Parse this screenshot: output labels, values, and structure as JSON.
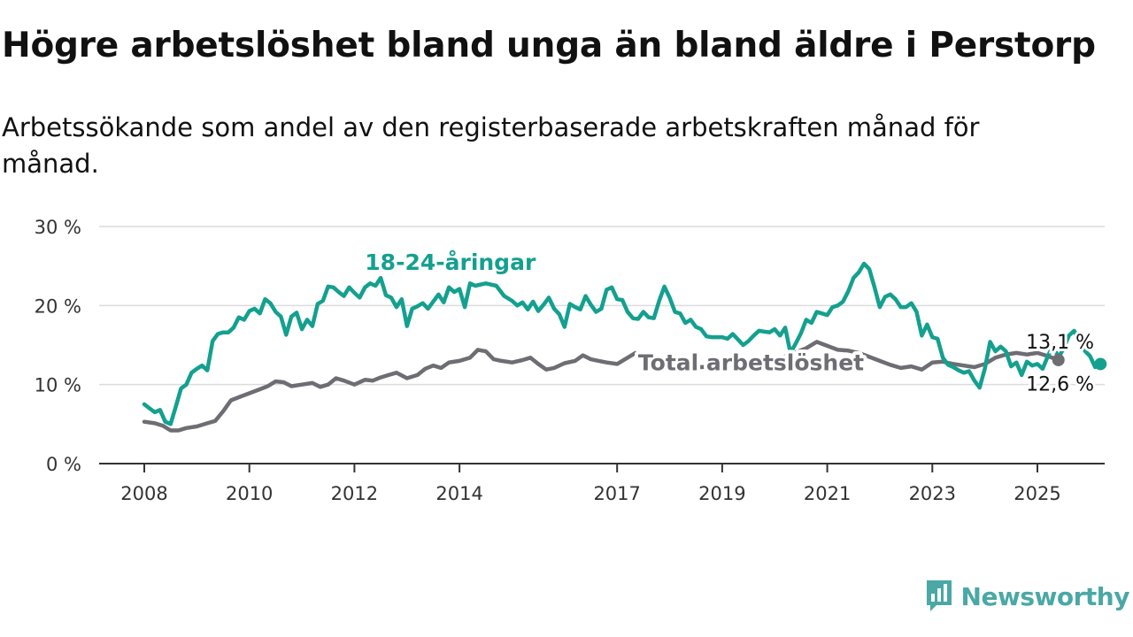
{
  "header": {
    "title": "Högre arbetslöshet bland unga än bland äldre i Perstorp",
    "subtitle": "Arbetssökande som andel av den registerbaserade arbetskraften månad för månad."
  },
  "branding": {
    "logo_text": "Newsworthy",
    "logo_icon": "bar-chart-speech-bubble-icon",
    "color": "#4aa8a6"
  },
  "chart_data": {
    "type": "line",
    "xlim": [
      2008,
      2026.3
    ],
    "ylim": [
      0,
      30
    ],
    "y_ticks": [
      0,
      10,
      20,
      30
    ],
    "y_tick_labels": [
      "0 %",
      "10 %",
      "20 %",
      "30 %"
    ],
    "x_ticks": [
      2008,
      2010,
      2012,
      2014,
      2017,
      2019,
      2021,
      2023,
      2025
    ],
    "x_tick_labels": [
      "2008",
      "2010",
      "2012",
      "2014",
      "2017",
      "2019",
      "2021",
      "2023",
      "2025"
    ],
    "grid": true,
    "series": [
      {
        "name": "Total arbetslöshet",
        "color": "#6e6d73",
        "end_label": "13,1 %",
        "points": [
          [
            2008.0,
            5.3
          ],
          [
            2008.2,
            5.1
          ],
          [
            2008.35,
            4.8
          ],
          [
            2008.5,
            4.2
          ],
          [
            2008.65,
            4.2
          ],
          [
            2008.8,
            4.5
          ],
          [
            2009.0,
            4.7
          ],
          [
            2009.2,
            5.1
          ],
          [
            2009.35,
            5.4
          ],
          [
            2009.5,
            6.6
          ],
          [
            2009.65,
            8.0
          ],
          [
            2009.8,
            8.4
          ],
          [
            2010.0,
            8.9
          ],
          [
            2010.2,
            9.4
          ],
          [
            2010.35,
            9.8
          ],
          [
            2010.5,
            10.4
          ],
          [
            2010.65,
            10.3
          ],
          [
            2010.8,
            9.8
          ],
          [
            2011.0,
            10.0
          ],
          [
            2011.2,
            10.2
          ],
          [
            2011.35,
            9.7
          ],
          [
            2011.5,
            10.0
          ],
          [
            2011.65,
            10.8
          ],
          [
            2011.8,
            10.5
          ],
          [
            2012.0,
            10.0
          ],
          [
            2012.2,
            10.6
          ],
          [
            2012.35,
            10.5
          ],
          [
            2012.5,
            10.9
          ],
          [
            2012.65,
            11.2
          ],
          [
            2012.8,
            11.5
          ],
          [
            2013.0,
            10.8
          ],
          [
            2013.2,
            11.2
          ],
          [
            2013.35,
            12.0
          ],
          [
            2013.5,
            12.4
          ],
          [
            2013.65,
            12.1
          ],
          [
            2013.8,
            12.8
          ],
          [
            2014.0,
            13.0
          ],
          [
            2014.2,
            13.4
          ],
          [
            2014.35,
            14.4
          ],
          [
            2014.5,
            14.2
          ],
          [
            2014.65,
            13.2
          ],
          [
            2014.8,
            13.0
          ],
          [
            2015.0,
            12.8
          ],
          [
            2015.2,
            13.1
          ],
          [
            2015.35,
            13.4
          ],
          [
            2015.5,
            12.6
          ],
          [
            2015.65,
            11.9
          ],
          [
            2015.8,
            12.1
          ],
          [
            2016.0,
            12.7
          ],
          [
            2016.2,
            13.0
          ],
          [
            2016.35,
            13.7
          ],
          [
            2016.5,
            13.2
          ],
          [
            2016.65,
            13.0
          ],
          [
            2016.8,
            12.8
          ],
          [
            2017.0,
            12.6
          ],
          [
            2017.2,
            13.4
          ],
          [
            2017.35,
            14.0
          ],
          [
            2017.5,
            13.3
          ],
          [
            2017.65,
            12.9
          ],
          [
            2017.8,
            12.5
          ],
          [
            2018.0,
            12.3
          ],
          [
            2018.3,
            12.6
          ],
          [
            2018.6,
            12.2
          ],
          [
            2019.0,
            12.4
          ],
          [
            2019.3,
            12.5
          ],
          [
            2019.6,
            12.8
          ],
          [
            2020.0,
            13.1
          ],
          [
            2020.3,
            13.8
          ],
          [
            2020.6,
            14.6
          ],
          [
            2020.8,
            15.4
          ],
          [
            2021.0,
            14.9
          ],
          [
            2021.2,
            14.4
          ],
          [
            2021.4,
            14.3
          ],
          [
            2021.6,
            14.0
          ],
          [
            2021.8,
            13.5
          ],
          [
            2022.0,
            13.0
          ],
          [
            2022.2,
            12.5
          ],
          [
            2022.4,
            12.1
          ],
          [
            2022.6,
            12.3
          ],
          [
            2022.8,
            11.9
          ],
          [
            2023.0,
            12.8
          ],
          [
            2023.2,
            12.9
          ],
          [
            2023.4,
            12.6
          ],
          [
            2023.6,
            12.4
          ],
          [
            2023.8,
            12.2
          ],
          [
            2024.0,
            12.6
          ],
          [
            2024.2,
            13.4
          ],
          [
            2024.4,
            13.8
          ],
          [
            2024.6,
            14.0
          ],
          [
            2024.8,
            13.8
          ],
          [
            2025.0,
            14.0
          ],
          [
            2025.2,
            13.6
          ],
          [
            2025.4,
            13.1
          ]
        ]
      },
      {
        "name": "18-24-åringar",
        "color": "#14a08f",
        "end_label": "12,6 %",
        "points": [
          [
            2008.0,
            7.5
          ],
          [
            2008.1,
            7.0
          ],
          [
            2008.2,
            6.5
          ],
          [
            2008.3,
            6.8
          ],
          [
            2008.4,
            5.3
          ],
          [
            2008.5,
            5.0
          ],
          [
            2008.6,
            7.2
          ],
          [
            2008.7,
            9.5
          ],
          [
            2008.8,
            10.0
          ],
          [
            2008.9,
            11.5
          ],
          [
            2009.0,
            12.0
          ],
          [
            2009.1,
            12.4
          ],
          [
            2009.2,
            11.8
          ],
          [
            2009.3,
            15.5
          ],
          [
            2009.4,
            16.4
          ],
          [
            2009.5,
            16.6
          ],
          [
            2009.6,
            16.6
          ],
          [
            2009.7,
            17.2
          ],
          [
            2009.8,
            18.5
          ],
          [
            2009.9,
            18.2
          ],
          [
            2010.0,
            19.3
          ],
          [
            2010.1,
            19.6
          ],
          [
            2010.2,
            19.0
          ],
          [
            2010.3,
            20.8
          ],
          [
            2010.4,
            20.3
          ],
          [
            2010.5,
            19.2
          ],
          [
            2010.6,
            18.6
          ],
          [
            2010.7,
            16.3
          ],
          [
            2010.8,
            18.6
          ],
          [
            2010.9,
            19.1
          ],
          [
            2011.0,
            17.0
          ],
          [
            2011.1,
            18.2
          ],
          [
            2011.2,
            17.4
          ],
          [
            2011.3,
            20.2
          ],
          [
            2011.4,
            20.6
          ],
          [
            2011.5,
            22.4
          ],
          [
            2011.6,
            22.3
          ],
          [
            2011.7,
            21.7
          ],
          [
            2011.8,
            21.2
          ],
          [
            2011.9,
            22.3
          ],
          [
            2012.0,
            21.6
          ],
          [
            2012.1,
            21.0
          ],
          [
            2012.2,
            22.3
          ],
          [
            2012.3,
            22.8
          ],
          [
            2012.4,
            22.5
          ],
          [
            2012.5,
            23.5
          ],
          [
            2012.6,
            21.3
          ],
          [
            2012.7,
            21.0
          ],
          [
            2012.8,
            19.8
          ],
          [
            2012.9,
            20.8
          ],
          [
            2013.0,
            17.4
          ],
          [
            2013.1,
            19.6
          ],
          [
            2013.2,
            19.9
          ],
          [
            2013.3,
            20.3
          ],
          [
            2013.4,
            19.6
          ],
          [
            2013.5,
            20.5
          ],
          [
            2013.6,
            21.4
          ],
          [
            2013.7,
            20.4
          ],
          [
            2013.8,
            22.3
          ],
          [
            2013.9,
            21.7
          ],
          [
            2014.0,
            22.1
          ],
          [
            2014.1,
            19.8
          ],
          [
            2014.2,
            22.8
          ],
          [
            2014.3,
            22.5
          ],
          [
            2014.5,
            22.8
          ],
          [
            2014.7,
            22.5
          ],
          [
            2014.85,
            21.2
          ],
          [
            2015.0,
            20.6
          ],
          [
            2015.1,
            20.0
          ],
          [
            2015.2,
            20.4
          ],
          [
            2015.3,
            19.5
          ],
          [
            2015.4,
            20.5
          ],
          [
            2015.5,
            19.3
          ],
          [
            2015.6,
            20.1
          ],
          [
            2015.7,
            21.0
          ],
          [
            2015.8,
            19.6
          ],
          [
            2015.9,
            18.9
          ],
          [
            2016.0,
            17.3
          ],
          [
            2016.1,
            20.2
          ],
          [
            2016.2,
            19.8
          ],
          [
            2016.3,
            19.5
          ],
          [
            2016.4,
            21.2
          ],
          [
            2016.5,
            20.1
          ],
          [
            2016.6,
            19.2
          ],
          [
            2016.7,
            19.6
          ],
          [
            2016.8,
            22.0
          ],
          [
            2016.9,
            22.3
          ],
          [
            2017.0,
            20.8
          ],
          [
            2017.1,
            20.7
          ],
          [
            2017.2,
            19.2
          ],
          [
            2017.3,
            18.4
          ],
          [
            2017.4,
            18.3
          ],
          [
            2017.5,
            19.2
          ],
          [
            2017.6,
            18.5
          ],
          [
            2017.7,
            18.4
          ],
          [
            2017.8,
            20.6
          ],
          [
            2017.9,
            22.4
          ],
          [
            2018.0,
            21.0
          ],
          [
            2018.1,
            19.2
          ],
          [
            2018.2,
            19.0
          ],
          [
            2018.3,
            17.8
          ],
          [
            2018.4,
            18.2
          ],
          [
            2018.5,
            17.3
          ],
          [
            2018.6,
            17.0
          ],
          [
            2018.7,
            16.1
          ],
          [
            2018.8,
            16.0
          ],
          [
            2018.9,
            16.0
          ],
          [
            2019.0,
            16.0
          ],
          [
            2019.1,
            15.8
          ],
          [
            2019.2,
            16.4
          ],
          [
            2019.3,
            15.7
          ],
          [
            2019.4,
            15.0
          ],
          [
            2019.5,
            15.5
          ],
          [
            2019.6,
            16.2
          ],
          [
            2019.7,
            16.8
          ],
          [
            2019.8,
            16.7
          ],
          [
            2019.9,
            16.6
          ],
          [
            2020.0,
            17.0
          ],
          [
            2020.1,
            16.2
          ],
          [
            2020.2,
            17.2
          ],
          [
            2020.3,
            14.0
          ],
          [
            2020.4,
            15.2
          ],
          [
            2020.5,
            16.5
          ],
          [
            2020.6,
            18.2
          ],
          [
            2020.7,
            17.8
          ],
          [
            2020.8,
            19.2
          ],
          [
            2020.9,
            19.0
          ],
          [
            2021.0,
            18.8
          ],
          [
            2021.1,
            19.8
          ],
          [
            2021.2,
            20.0
          ],
          [
            2021.3,
            20.5
          ],
          [
            2021.4,
            21.8
          ],
          [
            2021.5,
            23.5
          ],
          [
            2021.6,
            24.2
          ],
          [
            2021.7,
            25.3
          ],
          [
            2021.8,
            24.6
          ],
          [
            2021.9,
            22.3
          ],
          [
            2022.0,
            19.8
          ],
          [
            2022.1,
            21.1
          ],
          [
            2022.2,
            21.4
          ],
          [
            2022.3,
            20.8
          ],
          [
            2022.4,
            19.8
          ],
          [
            2022.5,
            19.8
          ],
          [
            2022.6,
            20.3
          ],
          [
            2022.7,
            19.2
          ],
          [
            2022.8,
            16.2
          ],
          [
            2022.9,
            17.6
          ],
          [
            2023.0,
            16.0
          ],
          [
            2023.1,
            15.8
          ],
          [
            2023.2,
            13.4
          ],
          [
            2023.3,
            12.5
          ],
          [
            2023.4,
            12.2
          ],
          [
            2023.5,
            11.8
          ],
          [
            2023.6,
            11.5
          ],
          [
            2023.7,
            11.7
          ],
          [
            2023.8,
            10.5
          ],
          [
            2023.9,
            9.6
          ],
          [
            2024.0,
            12.0
          ],
          [
            2024.1,
            15.4
          ],
          [
            2024.2,
            14.2
          ],
          [
            2024.3,
            14.8
          ],
          [
            2024.4,
            14.2
          ],
          [
            2024.5,
            12.3
          ],
          [
            2024.6,
            12.8
          ],
          [
            2024.7,
            11.2
          ],
          [
            2024.8,
            12.9
          ],
          [
            2024.9,
            12.4
          ],
          [
            2025.0,
            12.6
          ],
          [
            2025.1,
            12.0
          ],
          [
            2025.2,
            13.6
          ],
          [
            2025.3,
            15.0
          ],
          [
            2025.4,
            13.4
          ],
          [
            2025.5,
            14.6
          ],
          [
            2025.6,
            16.2
          ],
          [
            2025.7,
            16.8
          ],
          [
            2025.8,
            15.5
          ],
          [
            2025.9,
            14.3
          ],
          [
            2026.0,
            13.6
          ],
          [
            2026.1,
            12.2
          ],
          [
            2026.2,
            12.6
          ]
        ]
      }
    ]
  }
}
